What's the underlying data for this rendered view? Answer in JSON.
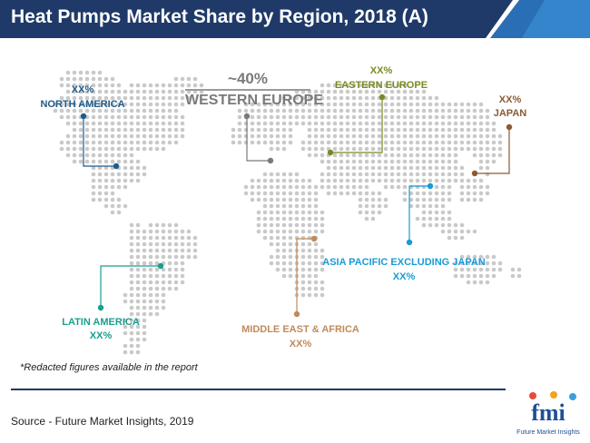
{
  "header": {
    "title": "Heat Pumps Market Share by Region, 2018 (A)"
  },
  "chart_data": {
    "type": "map",
    "title": "Heat Pumps Market Share by Region, 2018 (A)",
    "regions": [
      {
        "id": "north-america",
        "name": "NORTH AMERICA",
        "value": "XX%",
        "color": "#1e5b8c"
      },
      {
        "id": "western-europe",
        "name": "WESTERN EUROPE",
        "value": "~40%",
        "color": "#7a7a7a"
      },
      {
        "id": "eastern-europe",
        "name": "EASTERN EUROPE",
        "value": "XX%",
        "color": "#7a8a22"
      },
      {
        "id": "japan",
        "name": "JAPAN",
        "value": "XX%",
        "color": "#8b5a33"
      },
      {
        "id": "asia-pacific-excluding-japan",
        "name": "ASIA PACIFIC EXCLUDING JAPAN",
        "value": "XX%",
        "color": "#1a9ad6"
      },
      {
        "id": "latin-america",
        "name": "LATIN AMERICA",
        "value": "XX%",
        "color": "#1a9e8e"
      },
      {
        "id": "middle-east-africa",
        "name": "MIDDLE EAST & AFRICA",
        "value": "XX%",
        "color": "#c08a5a"
      }
    ]
  },
  "footnote": "*Redacted figures available in the report",
  "source": "Source - Future Market Insights, 2019",
  "logo": {
    "letters": "fmi",
    "tagline": "Future Market Insights"
  },
  "colors": {
    "title_bar": "#1f3a68",
    "divider": "#1f3a68",
    "map_dots": "#c9c9c9"
  }
}
